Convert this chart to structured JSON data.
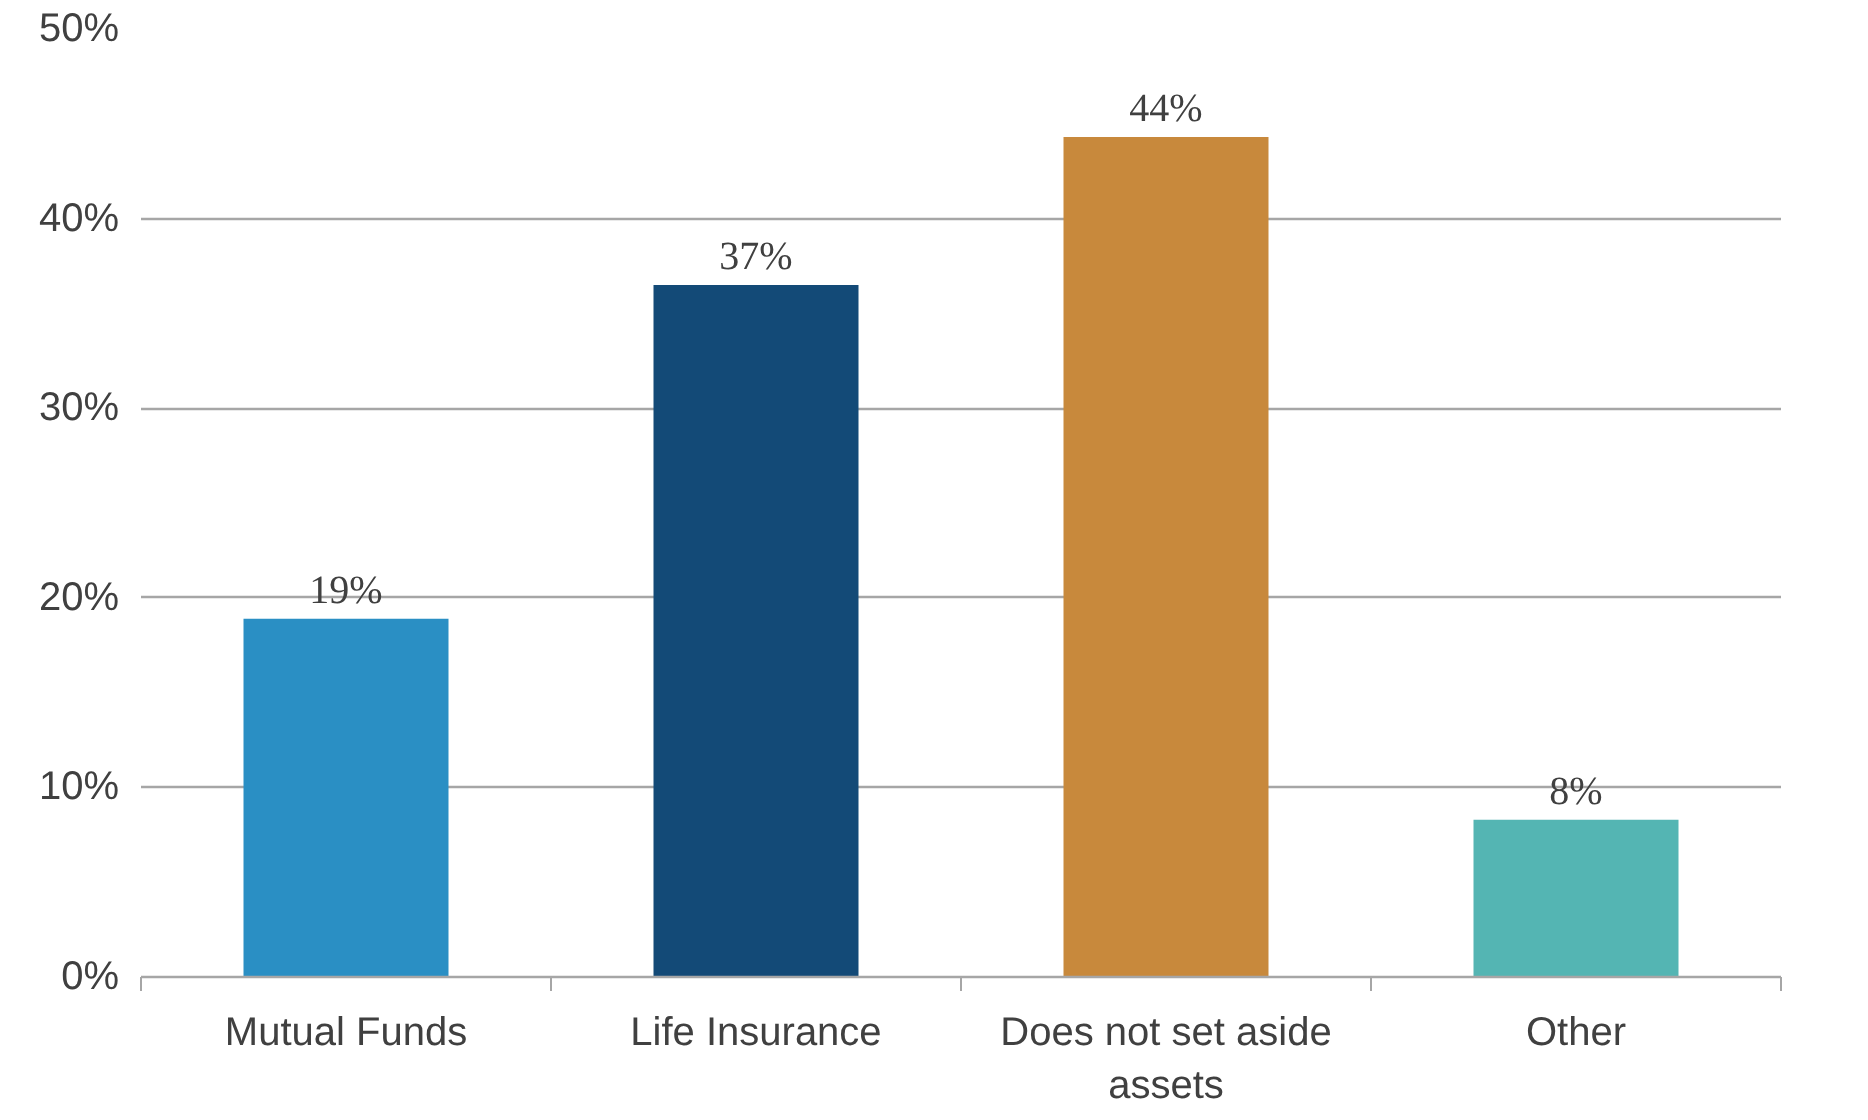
{
  "chart_data": {
    "type": "bar",
    "categories": [
      "Mutual Funds",
      "Life Insurance",
      "Does not set aside assets",
      "Other"
    ],
    "values": [
      18.9,
      36.5,
      44.3,
      8.3
    ],
    "value_labels": [
      "19%",
      "37%",
      "44%",
      "8%"
    ],
    "colors": [
      "#2a8fc4",
      "#134a77",
      "#c8893c",
      "#54b5b3"
    ],
    "ylim": [
      0,
      50
    ],
    "yticks": [
      {
        "value": 0,
        "label": "0%"
      },
      {
        "value": 10,
        "label": "10%"
      },
      {
        "value": 20,
        "label": "20%"
      },
      {
        "value": 30,
        "label": "30%"
      },
      {
        "value": 40,
        "label": "40%"
      },
      {
        "value": 50,
        "label": "50%"
      }
    ],
    "grid": "y"
  }
}
